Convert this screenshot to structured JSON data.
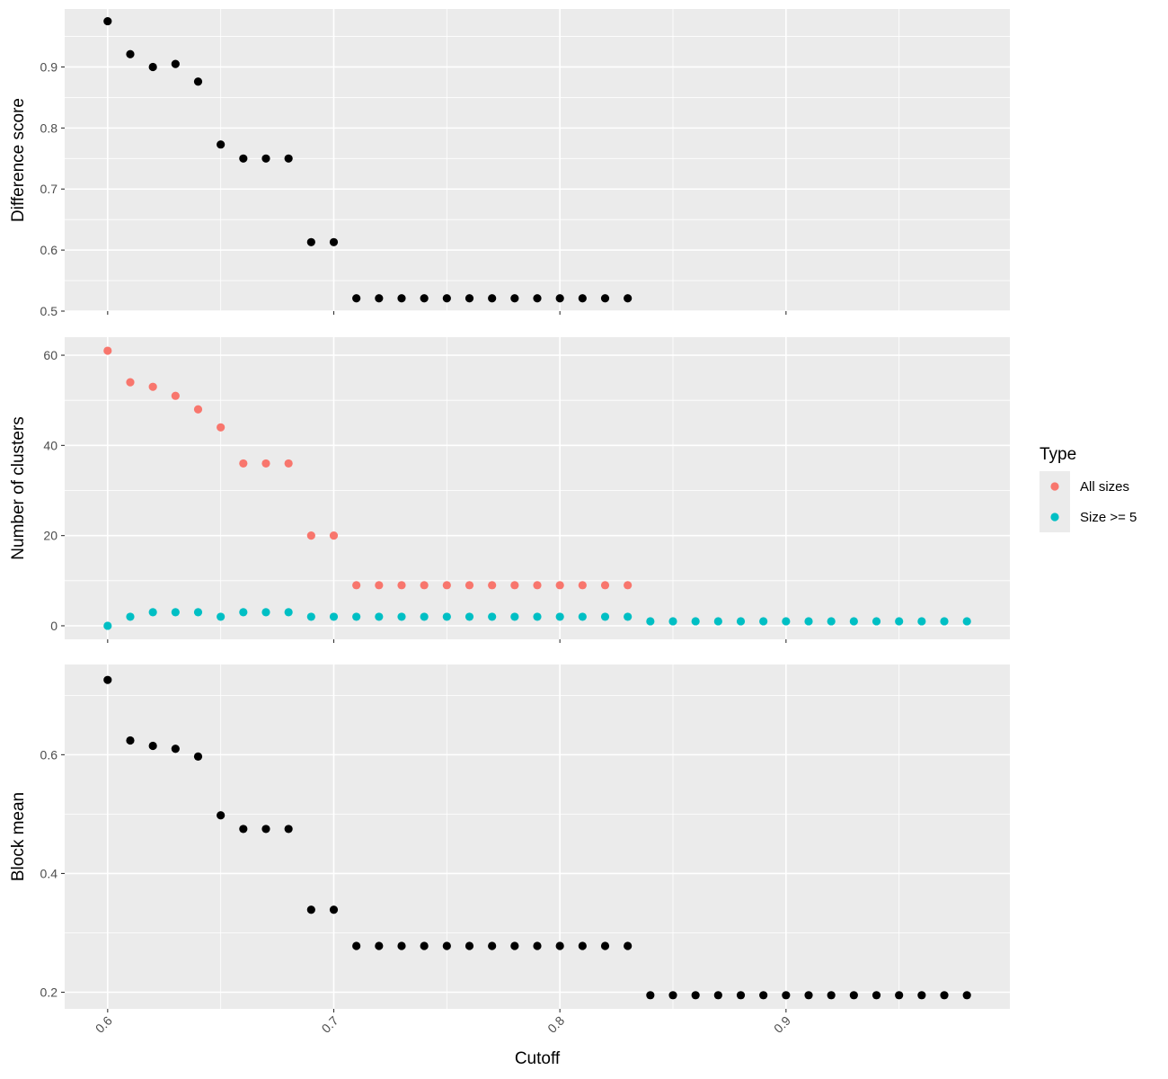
{
  "chart_data": {
    "type": "scatter",
    "x_axis": {
      "label": "Cutoff",
      "range": [
        0.581,
        0.999
      ],
      "ticks": [
        0.6,
        0.7,
        0.8,
        0.9
      ],
      "tick_labels": [
        "0.6",
        "0.7",
        "0.8",
        "0.9"
      ],
      "minor_ticks": [
        0.65,
        0.75,
        0.85,
        0.95
      ],
      "tick_label_rotation": "45 degrees"
    },
    "background_color": "#ebebeb",
    "grid": true,
    "panels": [
      {
        "id": "difference",
        "ylabel": "Difference score",
        "ylim": [
          0.5,
          0.995
        ],
        "y_ticks": [
          0.5,
          0.6,
          0.7,
          0.8,
          0.9
        ],
        "y_tick_labels": [
          "0.5",
          "0.6",
          "0.7",
          "0.8",
          "0.9"
        ],
        "y_minor_ticks": [
          0.55,
          0.65,
          0.75,
          0.85,
          0.95
        ],
        "series": [
          {
            "color": "#000000",
            "x": [
              0.6,
              0.61,
              0.62,
              0.63,
              0.64,
              0.65,
              0.66,
              0.67,
              0.68,
              0.69,
              0.7,
              0.71,
              0.72,
              0.73,
              0.74,
              0.75,
              0.76,
              0.77,
              0.78,
              0.79,
              0.8,
              0.81,
              0.82,
              0.83
            ],
            "y": [
              0.975,
              0.921,
              0.9,
              0.905,
              0.876,
              0.773,
              0.75,
              0.75,
              0.75,
              0.613,
              0.613,
              0.521,
              0.521,
              0.521,
              0.521,
              0.521,
              0.521,
              0.521,
              0.521,
              0.521,
              0.521,
              0.521,
              0.521,
              0.521
            ]
          }
        ]
      },
      {
        "id": "clusters",
        "ylabel": "Number of clusters",
        "ylim": [
          -3.0,
          64.0
        ],
        "y_ticks": [
          0,
          20,
          40,
          60
        ],
        "y_tick_labels": [
          "0",
          "20",
          "40",
          "60"
        ],
        "y_minor_ticks": [
          10,
          30,
          50
        ],
        "series": [
          {
            "name": "All sizes",
            "color": "#f8766d",
            "x": [
              0.6,
              0.61,
              0.62,
              0.63,
              0.64,
              0.65,
              0.66,
              0.67,
              0.68,
              0.69,
              0.7,
              0.71,
              0.72,
              0.73,
              0.74,
              0.75,
              0.76,
              0.77,
              0.78,
              0.79,
              0.8,
              0.81,
              0.82,
              0.83
            ],
            "y": [
              61,
              54,
              53,
              51,
              48,
              44,
              36,
              36,
              36,
              20,
              20,
              9,
              9,
              9,
              9,
              9,
              9,
              9,
              9,
              9,
              9,
              9,
              9,
              9
            ]
          },
          {
            "name": "Size >= 5",
            "color": "#00bfc4",
            "x": [
              0.6,
              0.61,
              0.62,
              0.63,
              0.64,
              0.65,
              0.66,
              0.67,
              0.68,
              0.69,
              0.7,
              0.71,
              0.72,
              0.73,
              0.74,
              0.75,
              0.76,
              0.77,
              0.78,
              0.79,
              0.8,
              0.81,
              0.82,
              0.83,
              0.84,
              0.85,
              0.86,
              0.87,
              0.88,
              0.89,
              0.9,
              0.91,
              0.92,
              0.93,
              0.94,
              0.95,
              0.96,
              0.97,
              0.98
            ],
            "y": [
              0,
              2,
              3,
              3,
              3,
              2,
              3,
              3,
              3,
              2,
              2,
              2,
              2,
              2,
              2,
              2,
              2,
              2,
              2,
              2,
              2,
              2,
              2,
              2,
              1,
              1,
              1,
              1,
              1,
              1,
              1,
              1,
              1,
              1,
              1,
              1,
              1,
              1,
              1
            ]
          }
        ]
      },
      {
        "id": "block",
        "ylabel": "Block mean",
        "ylim": [
          0.172,
          0.752
        ],
        "y_ticks": [
          0.2,
          0.4,
          0.6
        ],
        "y_tick_labels": [
          "0.2",
          "0.4",
          "0.6"
        ],
        "y_minor_ticks": [
          0.3,
          0.5,
          0.7
        ],
        "series": [
          {
            "color": "#000000",
            "x": [
              0.6,
              0.61,
              0.62,
              0.63,
              0.64,
              0.65,
              0.66,
              0.67,
              0.68,
              0.69,
              0.7,
              0.71,
              0.72,
              0.73,
              0.74,
              0.75,
              0.76,
              0.77,
              0.78,
              0.79,
              0.8,
              0.81,
              0.82,
              0.83,
              0.84,
              0.85,
              0.86,
              0.87,
              0.88,
              0.89,
              0.9,
              0.91,
              0.92,
              0.93,
              0.94,
              0.95,
              0.96,
              0.97,
              0.98
            ],
            "y": [
              0.726,
              0.624,
              0.615,
              0.61,
              0.597,
              0.498,
              0.475,
              0.475,
              0.475,
              0.339,
              0.339,
              0.278,
              0.278,
              0.278,
              0.278,
              0.278,
              0.278,
              0.278,
              0.278,
              0.278,
              0.278,
              0.278,
              0.278,
              0.278,
              0.195,
              0.195,
              0.195,
              0.195,
              0.195,
              0.195,
              0.195,
              0.195,
              0.195,
              0.195,
              0.195,
              0.195,
              0.195,
              0.195,
              0.195
            ]
          }
        ]
      }
    ],
    "legend": {
      "title": "Type",
      "placement": "right",
      "entries": [
        {
          "label": "All sizes",
          "color": "#f8766d"
        },
        {
          "label": "Size >= 5",
          "color": "#00bfc4"
        }
      ]
    }
  }
}
